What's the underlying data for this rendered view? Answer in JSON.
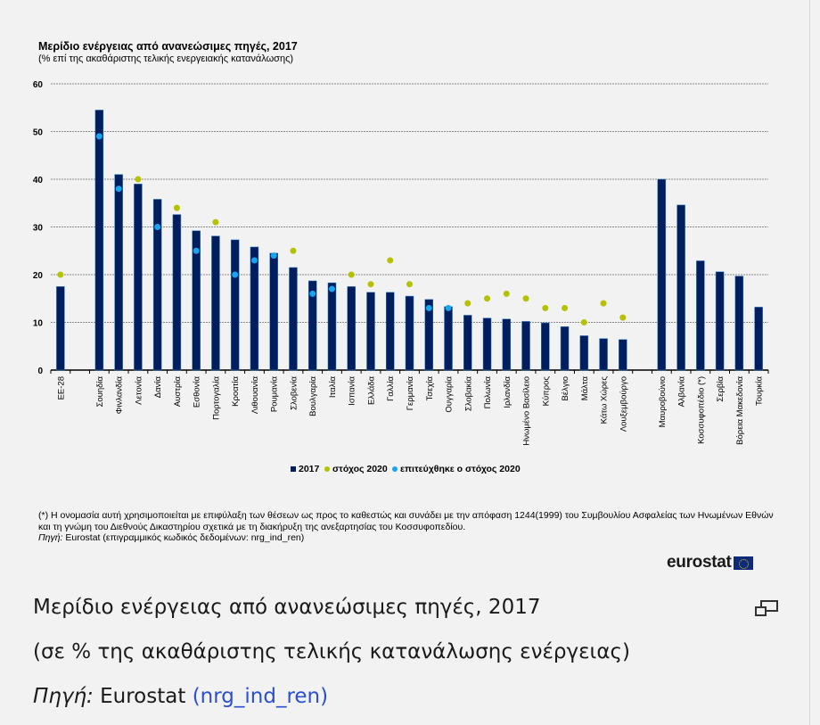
{
  "chart_title": "Μερίδιο ενέργειας από ανανεώσιμες πηγές, 2017",
  "chart_subtitle": "(% επί της ακαθάριστης τελικής ενεργειακής κατανάλωσης)",
  "footnote_line1": "(*) Η ονομασία αυτή χρησιμοποιείται με επιφύλαξη των θέσεων ως προς το καθεστώς και συνάδει με την απόφαση 1244(1999) του Συμβουλίου Ασφαλείας των Ηνωμένων Εθνών",
  "footnote_line2": "και τη γνώμη του Διεθνούς Δικαστηρίου σχετικά με τη διακήρυξη της ανεξαρτησίας του Κοσσυφοπεδίου.",
  "source_label": "Πηγή:",
  "source_text": "Eurostat (επιγραμμικός κωδικός δεδομένων: nrg_ind_ren)",
  "logo_text": "eurostat",
  "caption": {
    "title": "Μερίδιο ενέργειας από ανανεώσιμες πηγές, 2017",
    "subtitle": "(σε % της ακαθάριστης τελικής κατανάλωσης ενέργειας)",
    "source_label": "Πηγή:",
    "source_name": "Eurostat",
    "source_link": "(nrg_ind_ren)"
  },
  "colors": {
    "bar": "#001e5e",
    "target": "#b5c200",
    "achieved": "#1aa3ef"
  },
  "chart_data": {
    "type": "bar",
    "title": "Μερίδιο ενέργειας από ανανεώσιμες πηγές, 2017",
    "ylim": [
      0,
      60
    ],
    "yticks": [
      0,
      10,
      20,
      30,
      40,
      50,
      60
    ],
    "grid": true,
    "legend_position": "bottom",
    "legend": [
      "2017",
      "στόχος 2020",
      "επιτεύχθηκε ο στόχος 2020"
    ],
    "categories": [
      "ΕΕ-28",
      "",
      "Σουηδία",
      "Φινλανδία",
      "Λετονία",
      "Δανία",
      "Αυστρία",
      "Εσθονία",
      "Πορτογαλία",
      "Κροατία",
      "Λιθουανία",
      "Ρουμανία",
      "Σλοβενία",
      "Βουλγαρία",
      "Ιταλία",
      "Ισπανία",
      "Ελλάδα",
      "Γαλλία",
      "Γερμανία",
      "Τσεχία",
      "Ουγγαρία",
      "Σλοβακία",
      "Πολωνία",
      "Ιρλανδία",
      "Ηνωμένο Βασίλειο",
      "Κύπρος",
      "Βέλγιο",
      "Μάλτα",
      "Κάτω Χώρες",
      "Λουξεμβούργο",
      "",
      "Μαυροβούνιο",
      "Αλβανία",
      "Κοσσυφοπέδιο (*)",
      "Σερβία",
      "Βόρεια Μακεδονία",
      "Τουρκία"
    ],
    "series": [
      {
        "name": "2017",
        "values": [
          17.5,
          null,
          54.5,
          41.0,
          39.0,
          35.8,
          32.6,
          29.2,
          28.1,
          27.3,
          25.8,
          24.5,
          21.5,
          18.7,
          18.3,
          17.5,
          16.3,
          16.3,
          15.5,
          14.8,
          13.3,
          11.5,
          10.9,
          10.7,
          10.2,
          9.9,
          9.1,
          7.2,
          6.6,
          6.4,
          null,
          40.0,
          34.6,
          22.9,
          20.6,
          19.7,
          13.2
        ]
      },
      {
        "name": "στόχος 2020",
        "values": [
          20,
          null,
          49,
          38,
          40,
          30,
          34,
          25,
          31,
          20,
          23,
          24,
          25,
          16,
          17,
          20,
          18,
          23,
          18,
          13,
          13,
          14,
          15,
          16,
          15,
          13,
          13,
          10,
          14,
          11,
          null,
          null,
          null,
          null,
          null,
          null,
          null
        ]
      },
      {
        "name": "επιτεύχθηκε ο στόχος 2020",
        "values": [
          false,
          null,
          true,
          true,
          false,
          true,
          false,
          true,
          false,
          true,
          true,
          true,
          false,
          true,
          true,
          false,
          false,
          false,
          false,
          true,
          true,
          false,
          false,
          false,
          false,
          false,
          false,
          false,
          false,
          false,
          null,
          null,
          null,
          null,
          null,
          null,
          null
        ]
      }
    ]
  }
}
